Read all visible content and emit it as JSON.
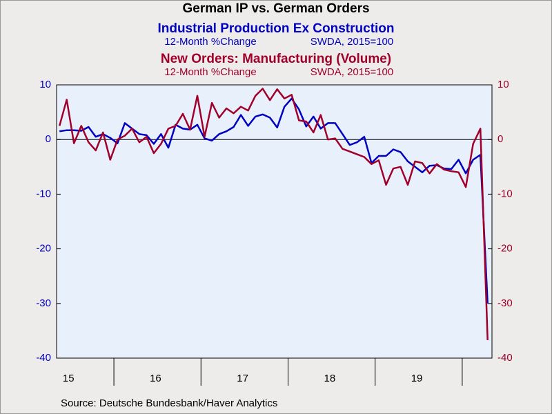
{
  "chart_data": {
    "type": "line",
    "title": "German IP vs. German Orders",
    "subtitles": [
      {
        "name": "Industrial Production Ex Construction",
        "note": "12-Month %Change",
        "basis": "SWDA, 2015=100"
      },
      {
        "name": "New Orders: Manufacturing (Volume)",
        "note": "12-Month %Change",
        "basis": "SWDA, 2015=100"
      }
    ],
    "source": "Source:  Deutsche Bundesbank/Haver Analytics",
    "categories": [
      null,
      null,
      "15",
      null,
      null,
      null,
      null,
      null,
      null,
      null,
      null,
      null,
      null,
      null,
      "16",
      null,
      null,
      null,
      null,
      null,
      null,
      null,
      null,
      null,
      null,
      null,
      "17",
      null,
      null,
      null,
      null,
      null,
      null,
      null,
      null,
      null,
      null,
      null,
      "18",
      null,
      null,
      null,
      null,
      null,
      null,
      null,
      null,
      null,
      null,
      null,
      "19",
      null,
      null,
      null,
      null,
      null,
      null,
      null,
      null,
      null
    ],
    "series": [
      {
        "name": "Industrial Production Ex Construction",
        "color": "#0000c0",
        "axis": "y",
        "values": [
          1.5,
          1.7,
          1.7,
          1.6,
          2.3,
          0.5,
          1.0,
          0.3,
          -0.7,
          3.0,
          2.0,
          1.0,
          0.8,
          -0.8,
          1.0,
          -1.5,
          2.7,
          2.0,
          1.8,
          2.7,
          0.2,
          -0.2,
          1.0,
          1.5,
          2.3,
          4.5,
          2.5,
          4.2,
          4.6,
          4.0,
          2.2,
          6.0,
          7.5,
          5.5,
          2.4,
          4.2,
          2.0,
          3.0,
          3.0,
          1.0,
          -1.0,
          -0.5,
          0.5,
          -4.3,
          -3.0,
          -3.0,
          -1.8,
          -2.3,
          -4.0,
          -5.0,
          -6.0,
          -4.8,
          -4.7,
          -5.3,
          -5.4,
          -3.7,
          -6.2,
          -3.7,
          -2.8,
          -30.0
        ]
      },
      {
        "name": "New Orders: Manufacturing (Volume)",
        "color": "#a0002a",
        "axis": "y2",
        "values": [
          2.5,
          7.3,
          -0.7,
          2.5,
          -0.5,
          -2.0,
          1.3,
          -3.7,
          0.0,
          0.7,
          2.0,
          -0.5,
          0.5,
          -2.5,
          -0.8,
          2.0,
          2.5,
          4.7,
          1.8,
          8.0,
          0.5,
          6.7,
          4.0,
          5.7,
          4.8,
          6.0,
          5.3,
          8.0,
          9.3,
          7.2,
          9.2,
          7.5,
          8.2,
          3.5,
          3.3,
          1.3,
          4.5,
          0.0,
          0.2,
          -1.7,
          -2.2,
          -2.7,
          -3.2,
          -4.5,
          -3.8,
          -8.3,
          -5.3,
          -5.0,
          -8.3,
          -4.0,
          -4.3,
          -6.2,
          -4.5,
          -5.5,
          -5.8,
          -6.0,
          -8.7,
          -0.8,
          2.0,
          -36.7
        ]
      }
    ],
    "ylim": [
      -40,
      10
    ],
    "yticks": [
      -40,
      -30,
      -20,
      -10,
      0,
      10
    ],
    "y2lim": [
      -40,
      10
    ],
    "y2ticks": [
      -40,
      -30,
      -20,
      -10,
      0,
      10
    ],
    "zero_line": true
  }
}
